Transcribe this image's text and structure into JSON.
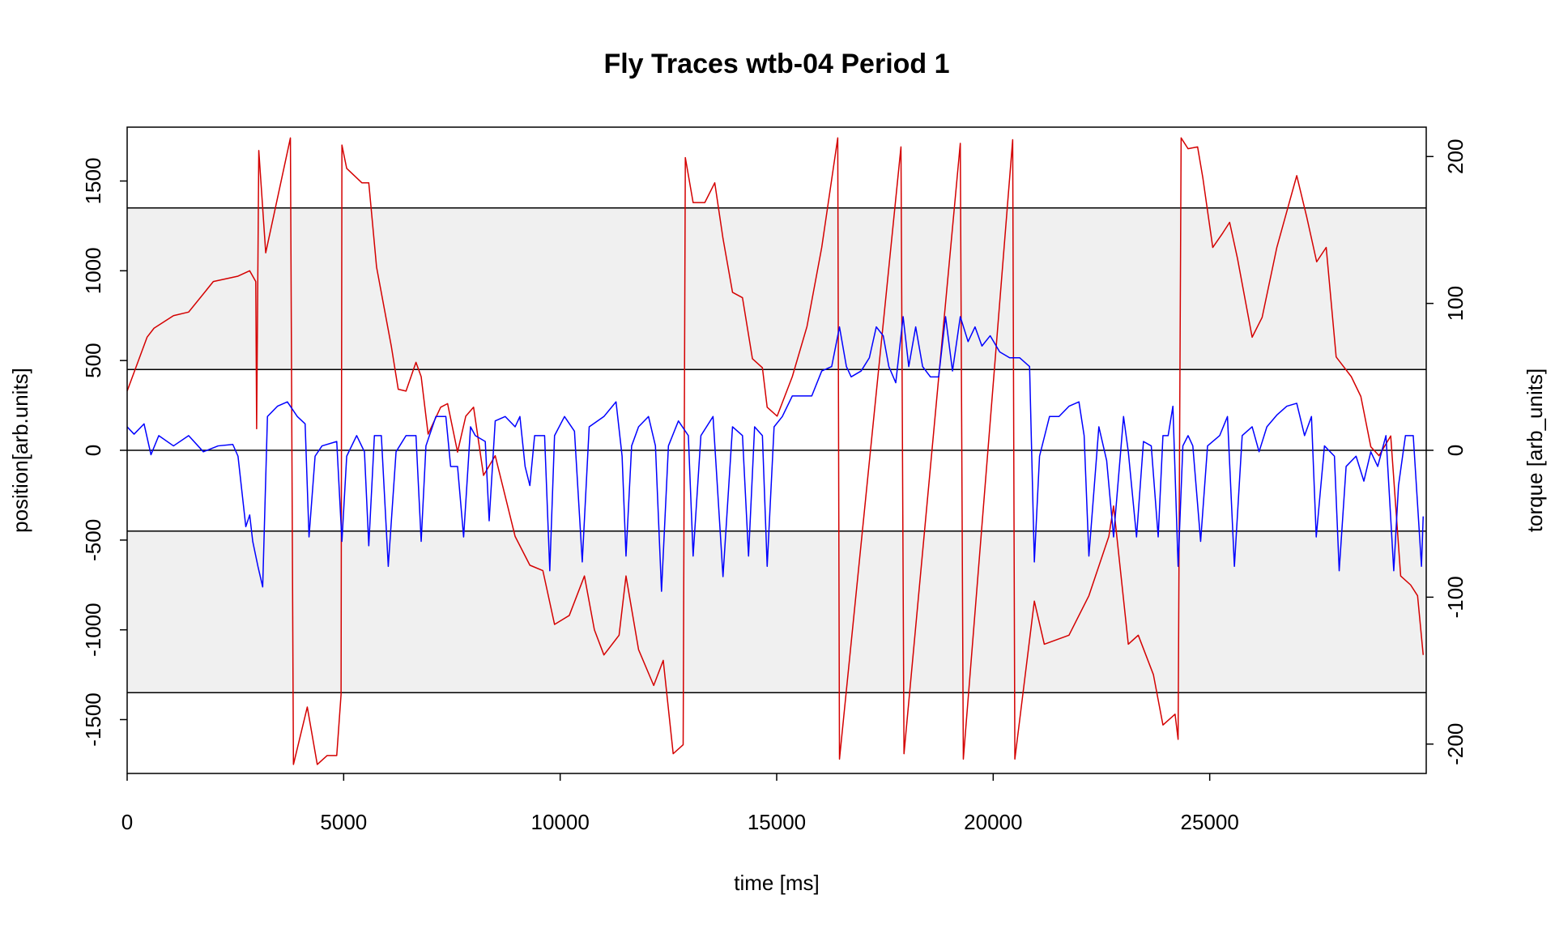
{
  "chart_data": {
    "type": "line",
    "title": "Fly Traces wtb-04 Period 1",
    "x_label": "time [ms]",
    "y_label": "position[arb.units]",
    "y2_label": "torque [arb_units]",
    "xlim": [
      0,
      30000
    ],
    "xticks": [
      0,
      5000,
      10000,
      15000,
      20000,
      25000
    ],
    "ylim": [
      -1800,
      1800
    ],
    "yticks": [
      -1500,
      -1000,
      -500,
      0,
      500,
      1000,
      1500
    ],
    "y2lim": [
      -220,
      220
    ],
    "y2ticks": [
      -200,
      -100,
      0,
      100,
      200
    ],
    "bands": [
      [
        450,
        1350
      ],
      [
        -1350,
        -450
      ]
    ],
    "band_color": "#f0f0f0",
    "hlines": [
      -1350,
      -450,
      0,
      450,
      1350
    ],
    "series": [
      {
        "color": "#d40000",
        "x": [
          0,
          460,
          620,
          1070,
          1420,
          1990,
          2560,
          2830,
          2970,
          2990,
          3040,
          3200,
          3770,
          3840,
          4160,
          4390,
          4620,
          4840,
          4940,
          4960,
          5070,
          5420,
          5580,
          5760,
          6100,
          6260,
          6440,
          6670,
          6790,
          6950,
          7240,
          7400,
          7630,
          7820,
          8000,
          8230,
          8500,
          8960,
          9300,
          9600,
          9870,
          10210,
          10560,
          10790,
          11010,
          11360,
          11520,
          11810,
          12160,
          12380,
          12610,
          12840,
          12890,
          13070,
          13340,
          13570,
          13760,
          13980,
          14210,
          14440,
          14670,
          14780,
          15010,
          15360,
          15700,
          16040,
          16410,
          16450,
          17870,
          17940,
          19240,
          19310,
          20450,
          20500,
          20950,
          21180,
          21750,
          22210,
          22670,
          22780,
          23120,
          23350,
          23700,
          23920,
          24200,
          24270,
          24340,
          24500,
          24720,
          24840,
          25070,
          25300,
          25460,
          25640,
          25980,
          26210,
          26550,
          27010,
          27240,
          27470,
          27690,
          27920,
          28270,
          28490,
          28720,
          28910,
          29180,
          29410,
          29640,
          29800,
          29930
        ],
        "values": [
          330,
          630,
          680,
          750,
          770,
          940,
          970,
          1000,
          940,
          120,
          1670,
          1100,
          1740,
          -1750,
          -1430,
          -1750,
          -1700,
          -1700,
          -1360,
          1700,
          1570,
          1490,
          1490,
          1020,
          580,
          340,
          330,
          490,
          410,
          90,
          240,
          260,
          -10,
          190,
          240,
          -140,
          -30,
          -480,
          -640,
          -670,
          -970,
          -920,
          -700,
          -1000,
          -1140,
          -1030,
          -700,
          -1110,
          -1310,
          -1170,
          -1690,
          -1640,
          1630,
          1380,
          1380,
          1490,
          1180,
          880,
          850,
          510,
          460,
          240,
          190,
          410,
          690,
          1130,
          1740,
          -1720,
          1690,
          -1690,
          1710,
          -1720,
          1730,
          -1720,
          -840,
          -1080,
          -1030,
          -810,
          -480,
          -310,
          -1080,
          -1030,
          -1250,
          -1530,
          -1470,
          -1610,
          1740,
          1680,
          1690,
          1520,
          1130,
          1210,
          1270,
          1070,
          630,
          740,
          1130,
          1530,
          1300,
          1050,
          1130,
          520,
          410,
          300,
          20,
          -30,
          80,
          -700,
          -750,
          -810,
          -1140
        ]
      },
      {
        "color": "#0000ff",
        "axis": "y2",
        "x": [
          0,
          160,
          390,
          550,
          730,
          1070,
          1420,
          1760,
          2100,
          2440,
          2560,
          2740,
          2830,
          2900,
          3020,
          3130,
          3240,
          3470,
          3700,
          3930,
          4110,
          4200,
          4340,
          4500,
          4840,
          4960,
          5070,
          5300,
          5480,
          5580,
          5710,
          5870,
          6030,
          6210,
          6440,
          6670,
          6790,
          6900,
          7130,
          7360,
          7470,
          7630,
          7770,
          7930,
          8040,
          8270,
          8360,
          8500,
          8730,
          8960,
          9070,
          9190,
          9300,
          9410,
          9640,
          9760,
          9870,
          10100,
          10330,
          10510,
          10670,
          11010,
          11290,
          11430,
          11520,
          11650,
          11810,
          12040,
          12200,
          12340,
          12500,
          12730,
          12960,
          13070,
          13250,
          13530,
          13760,
          13980,
          14210,
          14350,
          14490,
          14670,
          14780,
          14940,
          15130,
          15360,
          15580,
          15810,
          16040,
          16270,
          16450,
          16610,
          16720,
          16950,
          17140,
          17300,
          17460,
          17590,
          17750,
          17920,
          18050,
          18210,
          18370,
          18550,
          18740,
          18900,
          19060,
          19240,
          19420,
          19580,
          19740,
          19930,
          20150,
          20380,
          20610,
          20840,
          20950,
          21070,
          21300,
          21520,
          21750,
          21980,
          22100,
          22210,
          22440,
          22620,
          22780,
          23010,
          23120,
          23310,
          23470,
          23650,
          23810,
          23920,
          24040,
          24150,
          24270,
          24380,
          24500,
          24610,
          24790,
          24950,
          25230,
          25410,
          25570,
          25750,
          25980,
          26140,
          26320,
          26550,
          26780,
          27010,
          27190,
          27350,
          27460,
          27650,
          27880,
          27990,
          28150,
          28380,
          28560,
          28720,
          28880,
          29070,
          29250,
          29360,
          29520,
          29700,
          29890,
          29930
        ],
        "values": [
          16,
          11,
          18,
          -3,
          10,
          3,
          10,
          -1,
          3,
          4,
          -4,
          -52,
          -44,
          -62,
          -79,
          -93,
          23,
          30,
          33,
          23,
          18,
          -59,
          -4,
          3,
          6,
          -62,
          -4,
          10,
          -1,
          -65,
          10,
          10,
          -79,
          -1,
          10,
          10,
          -62,
          3,
          23,
          23,
          -11,
          -11,
          -59,
          16,
          10,
          6,
          -48,
          20,
          23,
          16,
          23,
          -11,
          -24,
          10,
          10,
          -82,
          10,
          23,
          13,
          -76,
          16,
          23,
          33,
          -4,
          -72,
          3,
          16,
          23,
          3,
          -96,
          3,
          20,
          10,
          -72,
          10,
          23,
          -86,
          16,
          10,
          -72,
          16,
          10,
          -79,
          16,
          23,
          37,
          37,
          37,
          54,
          57,
          84,
          57,
          50,
          54,
          63,
          84,
          78,
          57,
          46,
          91,
          57,
          84,
          57,
          50,
          50,
          91,
          54,
          91,
          74,
          84,
          71,
          78,
          67,
          63,
          63,
          57,
          -76,
          -4,
          23,
          23,
          30,
          33,
          10,
          -72,
          16,
          -7,
          -59,
          23,
          -1,
          -59,
          6,
          3,
          -59,
          10,
          10,
          30,
          -79,
          3,
          10,
          3,
          -62,
          3,
          10,
          23,
          -79,
          10,
          16,
          -1,
          16,
          24,
          30,
          32,
          10,
          23,
          -59,
          3,
          -4,
          -82,
          -11,
          -4,
          -21,
          -1,
          -11,
          10,
          -82,
          -24,
          10,
          10,
          -79,
          -45
        ]
      }
    ]
  }
}
